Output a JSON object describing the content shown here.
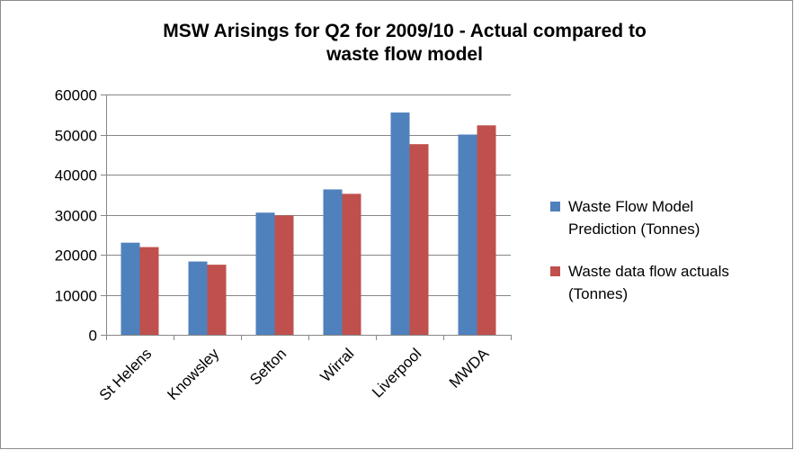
{
  "chart_data": {
    "type": "bar",
    "title": [
      "MSW Arisings for Q2 for 2009/10 - Actual compared to",
      "waste flow model"
    ],
    "xlabel": "",
    "ylabel": "",
    "categories": [
      "St Helens",
      "Knowsley",
      "Sefton",
      "Wirral",
      "Liverpool",
      "MWDA"
    ],
    "series": [
      {
        "name": [
          "Waste Flow Model",
          "Prediction (Tonnes)"
        ],
        "color": "#4F81BD",
        "values": [
          23000,
          18300,
          30500,
          36300,
          55500,
          50000
        ]
      },
      {
        "name": [
          "Waste data flow actuals",
          "(Tonnes)"
        ],
        "color": "#C0504D",
        "values": [
          21900,
          17500,
          29800,
          35200,
          47600,
          52300
        ]
      }
    ],
    "ylim": [
      0,
      60000
    ],
    "yticks": [
      0,
      10000,
      20000,
      30000,
      40000,
      50000,
      60000
    ],
    "grid": true,
    "legend_position": "right"
  }
}
